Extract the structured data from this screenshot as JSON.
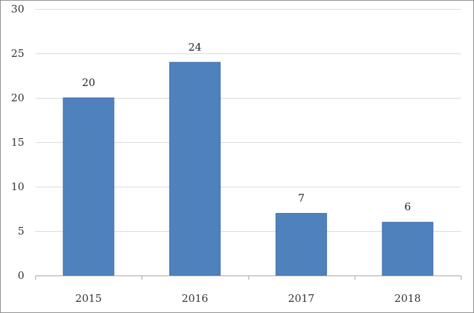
{
  "chart_data": {
    "type": "bar",
    "title": "",
    "xlabel": "",
    "ylabel": "",
    "categories": [
      "2015",
      "2016",
      "2017",
      "2018"
    ],
    "values": [
      20,
      24,
      7,
      6
    ],
    "data_labels": [
      "20",
      "24",
      "7",
      "6"
    ],
    "ylim": [
      0,
      30
    ],
    "yticks": [
      0,
      5,
      10,
      15,
      20,
      25,
      30
    ],
    "grid": true,
    "legend": "none",
    "colors": {
      "bar": "#4f81bd",
      "bar_edge": "#3f6ea6",
      "grid": "#d9d9d9",
      "axis": "#a6a6a6"
    }
  }
}
